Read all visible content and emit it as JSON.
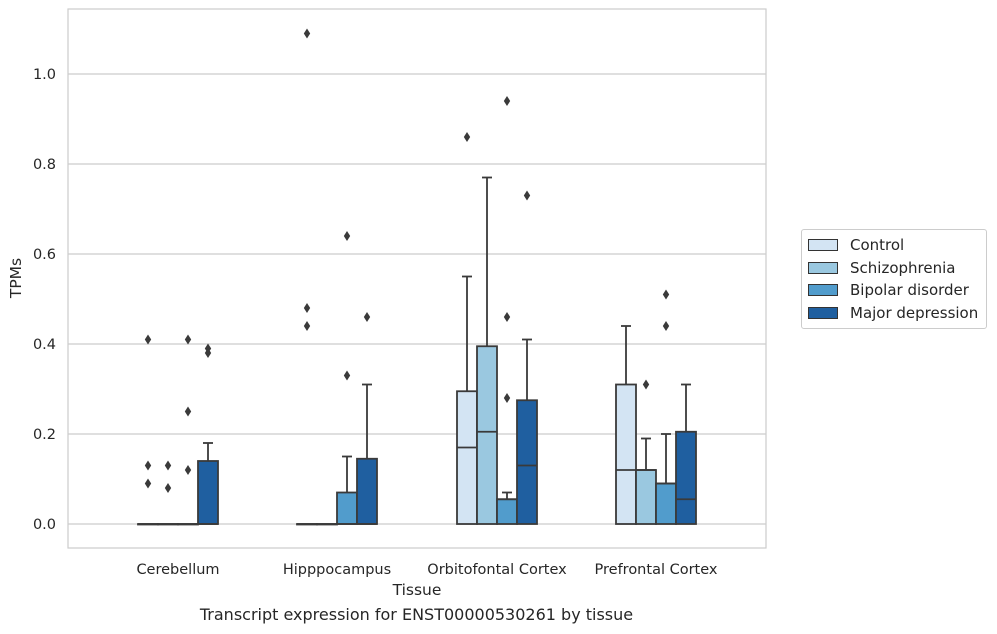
{
  "chart_data": {
    "type": "box",
    "title": "",
    "caption": "Transcript expression for ENST00000530261 by tissue",
    "xlabel": "Tissue",
    "ylabel": "TPMs",
    "ylim": [
      -0.05,
      1.14
    ],
    "yticks": [
      "0.0",
      "0.2",
      "0.4",
      "0.6",
      "0.8",
      "1.0"
    ],
    "grid": "horizontal",
    "legend_placement": "right",
    "categories": [
      "Cerebellum",
      "Hipppocampus",
      "Orbitofontal Cortex",
      "Prefrontal Cortex"
    ],
    "series": [
      {
        "name": "Control",
        "color": "#d3e4f3",
        "boxes": [
          {
            "q1": 0,
            "median": 0,
            "q3": 0,
            "whisker_low": 0,
            "whisker_high": 0,
            "outliers": [
              0.41,
              0.13,
              0.09
            ]
          },
          {
            "q1": 0,
            "median": 0,
            "q3": 0,
            "whisker_low": 0,
            "whisker_high": 0,
            "outliers": [
              1.09,
              0.48,
              0.44
            ]
          },
          {
            "q1": 0,
            "median": 0.17,
            "q3": 0.295,
            "whisker_low": 0,
            "whisker_high": 0.55,
            "outliers": [
              0.86
            ]
          },
          {
            "q1": 0,
            "median": 0.12,
            "q3": 0.31,
            "whisker_low": 0,
            "whisker_high": 0.44,
            "outliers": []
          }
        ]
      },
      {
        "name": "Schizophrenia",
        "color": "#9ac8e0",
        "boxes": [
          {
            "q1": 0,
            "median": 0,
            "q3": 0,
            "whisker_low": 0,
            "whisker_high": 0,
            "outliers": [
              0.13,
              0.08
            ]
          },
          {
            "q1": 0,
            "median": 0,
            "q3": 0,
            "whisker_low": 0,
            "whisker_high": 0,
            "outliers": []
          },
          {
            "q1": 0,
            "median": 0.205,
            "q3": 0.395,
            "whisker_low": 0,
            "whisker_high": 0.77,
            "outliers": []
          },
          {
            "q1": 0,
            "median": 0.12,
            "q3": 0.12,
            "whisker_low": 0,
            "whisker_high": 0.19,
            "outliers": [
              0.31
            ]
          }
        ]
      },
      {
        "name": "Bipolar disorder",
        "color": "#519ccc",
        "boxes": [
          {
            "q1": 0,
            "median": 0,
            "q3": 0,
            "whisker_low": 0,
            "whisker_high": 0,
            "outliers": [
              0.41,
              0.25,
              0.12
            ]
          },
          {
            "q1": 0,
            "median": 0,
            "q3": 0.07,
            "whisker_low": 0,
            "whisker_high": 0.15,
            "outliers": [
              0.64,
              0.33
            ]
          },
          {
            "q1": 0,
            "median": 0.055,
            "q3": 0.055,
            "whisker_low": 0,
            "whisker_high": 0.07,
            "outliers": [
              0.94,
              0.46,
              0.28
            ]
          },
          {
            "q1": 0,
            "median": 0.09,
            "q3": 0.09,
            "whisker_low": 0,
            "whisker_high": 0.2,
            "outliers": [
              0.51,
              0.44
            ]
          }
        ]
      },
      {
        "name": "Major depression",
        "color": "#1f5fa0",
        "boxes": [
          {
            "q1": 0,
            "median": 0,
            "q3": 0.14,
            "whisker_low": 0,
            "whisker_high": 0.18,
            "outliers": [
              0.39,
              0.38
            ]
          },
          {
            "q1": 0,
            "median": 0,
            "q3": 0.145,
            "whisker_low": 0,
            "whisker_high": 0.31,
            "outliers": [
              0.46
            ]
          },
          {
            "q1": 0,
            "median": 0.13,
            "q3": 0.275,
            "whisker_low": 0,
            "whisker_high": 0.41,
            "outliers": [
              0.73
            ]
          },
          {
            "q1": 0,
            "median": 0.055,
            "q3": 0.205,
            "whisker_low": 0,
            "whisker_high": 0.31,
            "outliers": []
          }
        ]
      }
    ]
  }
}
